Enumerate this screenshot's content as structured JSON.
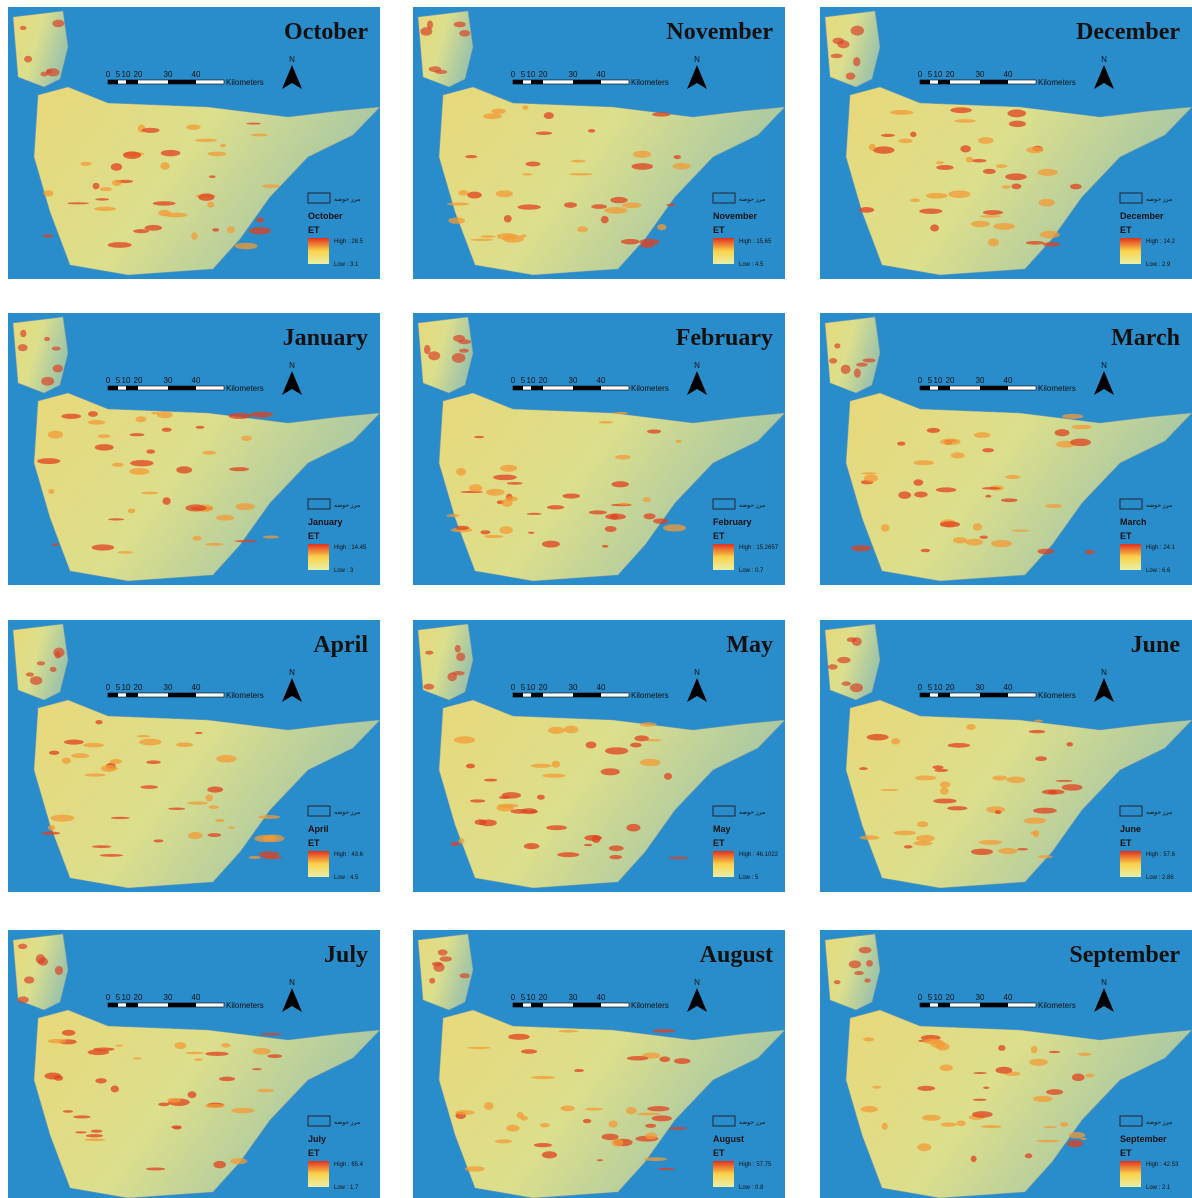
{
  "scale_labels": [
    "0",
    "5",
    "10",
    "20",
    "30",
    "40",
    "Kilometers"
  ],
  "north_label": "N",
  "boundary_label": "مرز حوضه",
  "variable_label": "ET",
  "panels": [
    {
      "title": "October",
      "legend_title": "October",
      "high": "High : 28.5",
      "low": "Low : 3.1"
    },
    {
      "title": "November",
      "legend_title": "November",
      "high": "High : 15.65",
      "low": "Low : 4.5"
    },
    {
      "title": "December",
      "legend_title": "December",
      "high": "High : 14.2",
      "low": "Low : 2.9"
    },
    {
      "title": "January",
      "legend_title": "January",
      "high": "High : 14.45",
      "low": "Low : 3"
    },
    {
      "title": "February",
      "legend_title": "February",
      "high": "High : 15.2657",
      "low": "Low : 0.7"
    },
    {
      "title": "March",
      "legend_title": "March",
      "high": "High : 24.1",
      "low": "Low : 6.6"
    },
    {
      "title": "April",
      "legend_title": "April",
      "high": "High : 43.6",
      "low": "Low : 4.5"
    },
    {
      "title": "May",
      "legend_title": "May",
      "high": "High : 46.1022",
      "low": "Low : 5"
    },
    {
      "title": "June",
      "legend_title": "June",
      "high": "High : 57.6",
      "low": "Low : 2.86"
    },
    {
      "title": "July",
      "legend_title": "July",
      "high": "High : 65.4",
      "low": "Low : 1.7"
    },
    {
      "title": "August",
      "legend_title": "August",
      "high": "High : 57.75",
      "low": "Low : 0.8"
    },
    {
      "title": "September",
      "legend_title": "September",
      "high": "High : 42.53",
      "low": "Low : 2.1"
    }
  ]
}
